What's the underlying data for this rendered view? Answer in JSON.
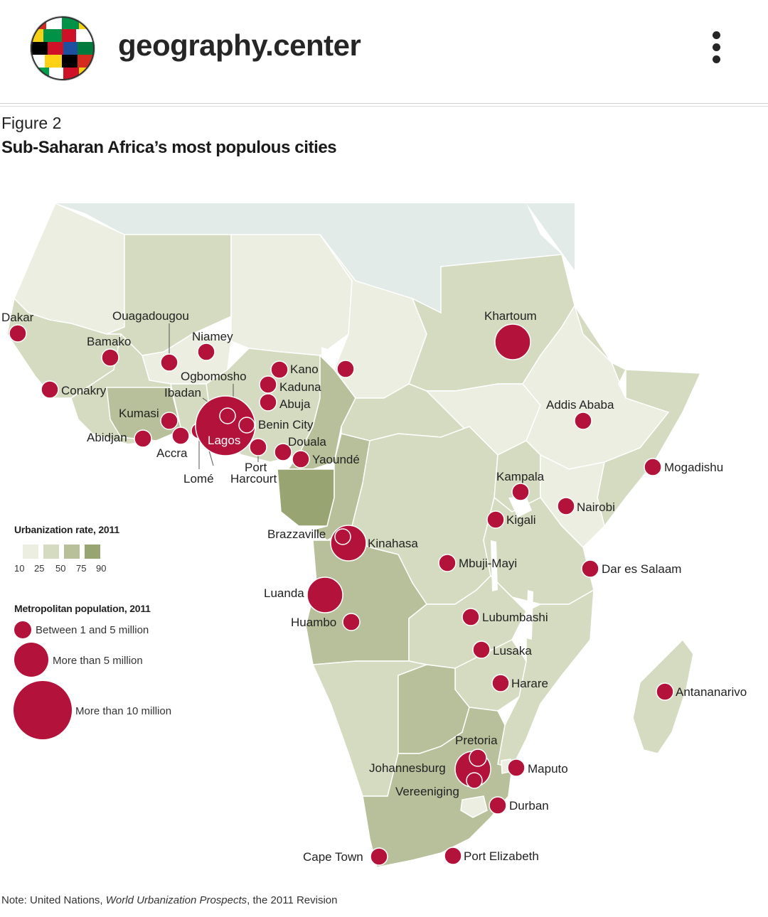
{
  "header": {
    "account_name": "geography.center",
    "avatar_icon": "flags-globe-icon",
    "menu_icon": "more-vertical-icon"
  },
  "figure": {
    "label": "Figure 2",
    "title": "Sub-Saharan Africa’s most populous cities"
  },
  "legend": {
    "urbanization_title": "Urbanization rate, 2011",
    "urbanization_ticks": [
      "10",
      "25",
      "50",
      "75",
      "90"
    ],
    "urbanization_colors": [
      "#eceee2",
      "#d5dbc1",
      "#b7c09a",
      "#98a572"
    ],
    "population_title": "Metropolitan population, 2011",
    "population_classes": [
      {
        "label": "Between 1 and 5 million"
      },
      {
        "label": "More than 5 million"
      },
      {
        "label": "More than 10 million"
      }
    ]
  },
  "colors": {
    "city_marker": "#b3123a",
    "map_background": "#e3ebe9",
    "land_light": "#eceee2",
    "land_medium": "#d5dbc1",
    "land_dark": "#b7c09a",
    "land_darkest": "#98a572"
  },
  "cities": [
    {
      "name": "Dakar",
      "size": "1-5M"
    },
    {
      "name": "Ouagadougou",
      "size": "1-5M"
    },
    {
      "name": "Bamako",
      "size": "1-5M"
    },
    {
      "name": "Niamey",
      "size": "1-5M"
    },
    {
      "name": "Conakry",
      "size": "1-5M"
    },
    {
      "name": "Ibadan",
      "size": "1-5M"
    },
    {
      "name": "Ogbomosho",
      "size": "1-5M"
    },
    {
      "name": "Kano",
      "size": "1-5M"
    },
    {
      "name": "Kaduna",
      "size": "1-5M"
    },
    {
      "name": "Abuja",
      "size": "1-5M"
    },
    {
      "name": "Kumasi",
      "size": "1-5M"
    },
    {
      "name": "Abidjan",
      "size": "1-5M"
    },
    {
      "name": "Accra",
      "size": "1-5M"
    },
    {
      "name": "Lomé",
      "size": "1-5M"
    },
    {
      "name": "Lagos",
      "size": ">10M"
    },
    {
      "name": "Benin City",
      "size": "1-5M"
    },
    {
      "name": "Port Harcourt",
      "size": "1-5M"
    },
    {
      "name": "Douala",
      "size": "1-5M"
    },
    {
      "name": "Yaoundé",
      "size": "1-5M"
    },
    {
      "name": "Khartoum",
      "size": ">5M"
    },
    {
      "name": "Addis Ababa",
      "size": "1-5M"
    },
    {
      "name": "Mogadishu",
      "size": "1-5M"
    },
    {
      "name": "Kampala",
      "size": "1-5M"
    },
    {
      "name": "Nairobi",
      "size": "1-5M"
    },
    {
      "name": "Kigali",
      "size": "1-5M"
    },
    {
      "name": "Brazzaville",
      "size": "1-5M"
    },
    {
      "name": "Kinahasa",
      "size": ">5M"
    },
    {
      "name": "Mbuji-Mayi",
      "size": "1-5M"
    },
    {
      "name": "Dar es Salaam",
      "size": "1-5M"
    },
    {
      "name": "Luanda",
      "size": ">5M"
    },
    {
      "name": "Huambo",
      "size": "1-5M"
    },
    {
      "name": "Lubumbashi",
      "size": "1-5M"
    },
    {
      "name": "Lusaka",
      "size": "1-5M"
    },
    {
      "name": "Harare",
      "size": "1-5M"
    },
    {
      "name": "Antananarivo",
      "size": "1-5M"
    },
    {
      "name": "Pretoria",
      "size": "1-5M"
    },
    {
      "name": "Johannesburg",
      "size": ">5M"
    },
    {
      "name": "Vereeniging",
      "size": "1-5M"
    },
    {
      "name": "Maputo",
      "size": "1-5M"
    },
    {
      "name": "Durban",
      "size": "1-5M"
    },
    {
      "name": "Cape Town",
      "size": "1-5M"
    },
    {
      "name": "Port Elizabeth",
      "size": "1-5M"
    }
  ],
  "note": {
    "prefix": "Note: United Nations, ",
    "source_title": "World Urbanization Prospects",
    "suffix": ", the 2011 Revision"
  }
}
